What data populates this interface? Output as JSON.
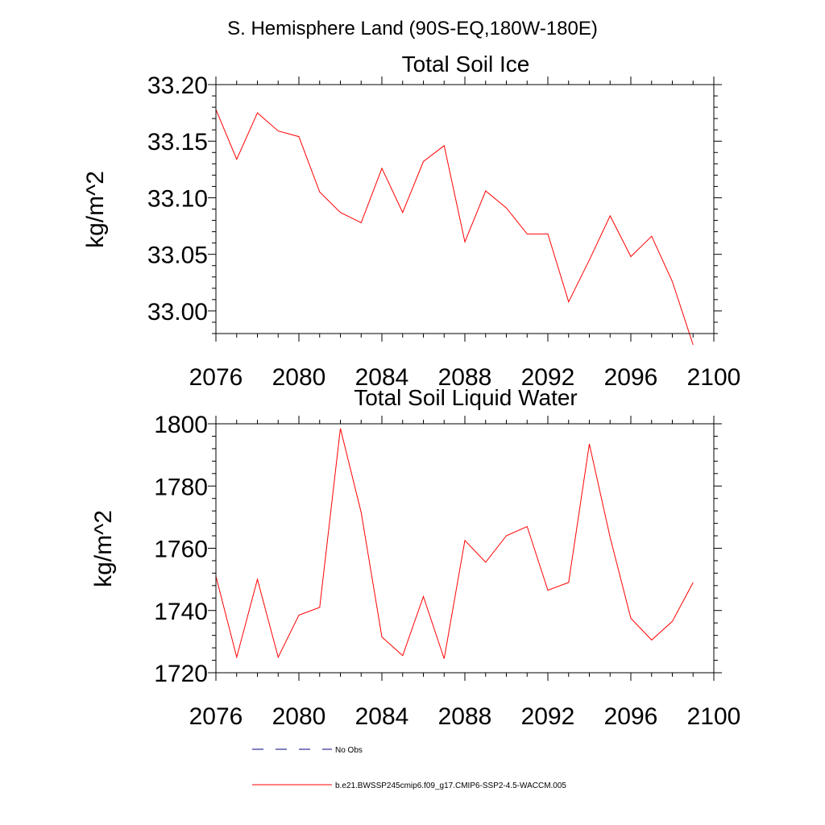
{
  "main_title": "S. Hemisphere Land (90S-EQ,180W-180E)",
  "colors": {
    "series": "#ff0000",
    "obs": "#000080",
    "axis": "#000000"
  },
  "chart_data": [
    {
      "type": "line",
      "title": "Total Soil Ice",
      "xlabel": "",
      "ylabel": "kg/m^2",
      "xlim": [
        2076,
        2100
      ],
      "ylim": [
        32.98,
        33.2
      ],
      "xticks": [
        2076,
        2080,
        2084,
        2088,
        2092,
        2096,
        2100
      ],
      "xtick_labels": [
        "2076",
        "2080",
        "2084",
        "2088",
        "2092",
        "2096",
        "2100"
      ],
      "yticks": [
        33.0,
        33.05,
        33.1,
        33.15,
        33.2
      ],
      "ytick_labels": [
        "33.00",
        "33.05",
        "33.10",
        "33.15",
        "33.20"
      ],
      "x_minor_step": 1,
      "y_minor_step": 0.01,
      "series": [
        {
          "name": "b.e21.BWSSP245cmip6.f09_g17.CMIP6-SSP2-4.5-WACCM.005",
          "x": [
            2076,
            2077,
            2078,
            2079,
            2080,
            2081,
            2082,
            2083,
            2084,
            2085,
            2086,
            2087,
            2088,
            2089,
            2090,
            2091,
            2092,
            2093,
            2094,
            2095,
            2096,
            2097,
            2098,
            2099
          ],
          "values": [
            33.178,
            33.134,
            33.175,
            33.159,
            33.154,
            33.105,
            33.087,
            33.078,
            33.126,
            33.087,
            33.132,
            33.146,
            33.061,
            33.106,
            33.091,
            33.068,
            33.068,
            33.008,
            33.045,
            33.084,
            33.048,
            33.066,
            33.026,
            32.97
          ]
        }
      ]
    },
    {
      "type": "line",
      "title": "Total Soil Liquid Water",
      "xlabel": "",
      "ylabel": "kg/m^2",
      "xlim": [
        2076,
        2100
      ],
      "ylim": [
        1720,
        1800
      ],
      "xticks": [
        2076,
        2080,
        2084,
        2088,
        2092,
        2096,
        2100
      ],
      "xtick_labels": [
        "2076",
        "2080",
        "2084",
        "2088",
        "2092",
        "2096",
        "2100"
      ],
      "yticks": [
        1720,
        1740,
        1760,
        1780,
        1800
      ],
      "ytick_labels": [
        "1720",
        "1740",
        "1760",
        "1780",
        "1800"
      ],
      "x_minor_step": 1,
      "y_minor_step": 4,
      "series": [
        {
          "name": "b.e21.BWSSP245cmip6.f09_g17.CMIP6-SSP2-4.5-WACCM.005",
          "x": [
            2076,
            2077,
            2078,
            2079,
            2080,
            2081,
            2082,
            2083,
            2084,
            2085,
            2086,
            2087,
            2088,
            2089,
            2090,
            2091,
            2092,
            2093,
            2094,
            2095,
            2096,
            2097,
            2098,
            2099
          ],
          "values": [
            1751,
            1725,
            1750,
            1725,
            1738.5,
            1741,
            1798.5,
            1771.5,
            1731.5,
            1725.5,
            1744.5,
            1724.5,
            1762.5,
            1755.5,
            1764,
            1767,
            1746.5,
            1749,
            1793.5,
            1763.5,
            1737.5,
            1730.5,
            1736.5,
            1749
          ]
        }
      ]
    }
  ],
  "legend": [
    {
      "label": "No Obs",
      "style": "dashed",
      "color": "#000080"
    },
    {
      "label": "b.e21.BWSSP245cmip6.f09_g17.CMIP6-SSP2-4.5-WACCM.005",
      "style": "solid",
      "color": "#ff0000"
    }
  ]
}
